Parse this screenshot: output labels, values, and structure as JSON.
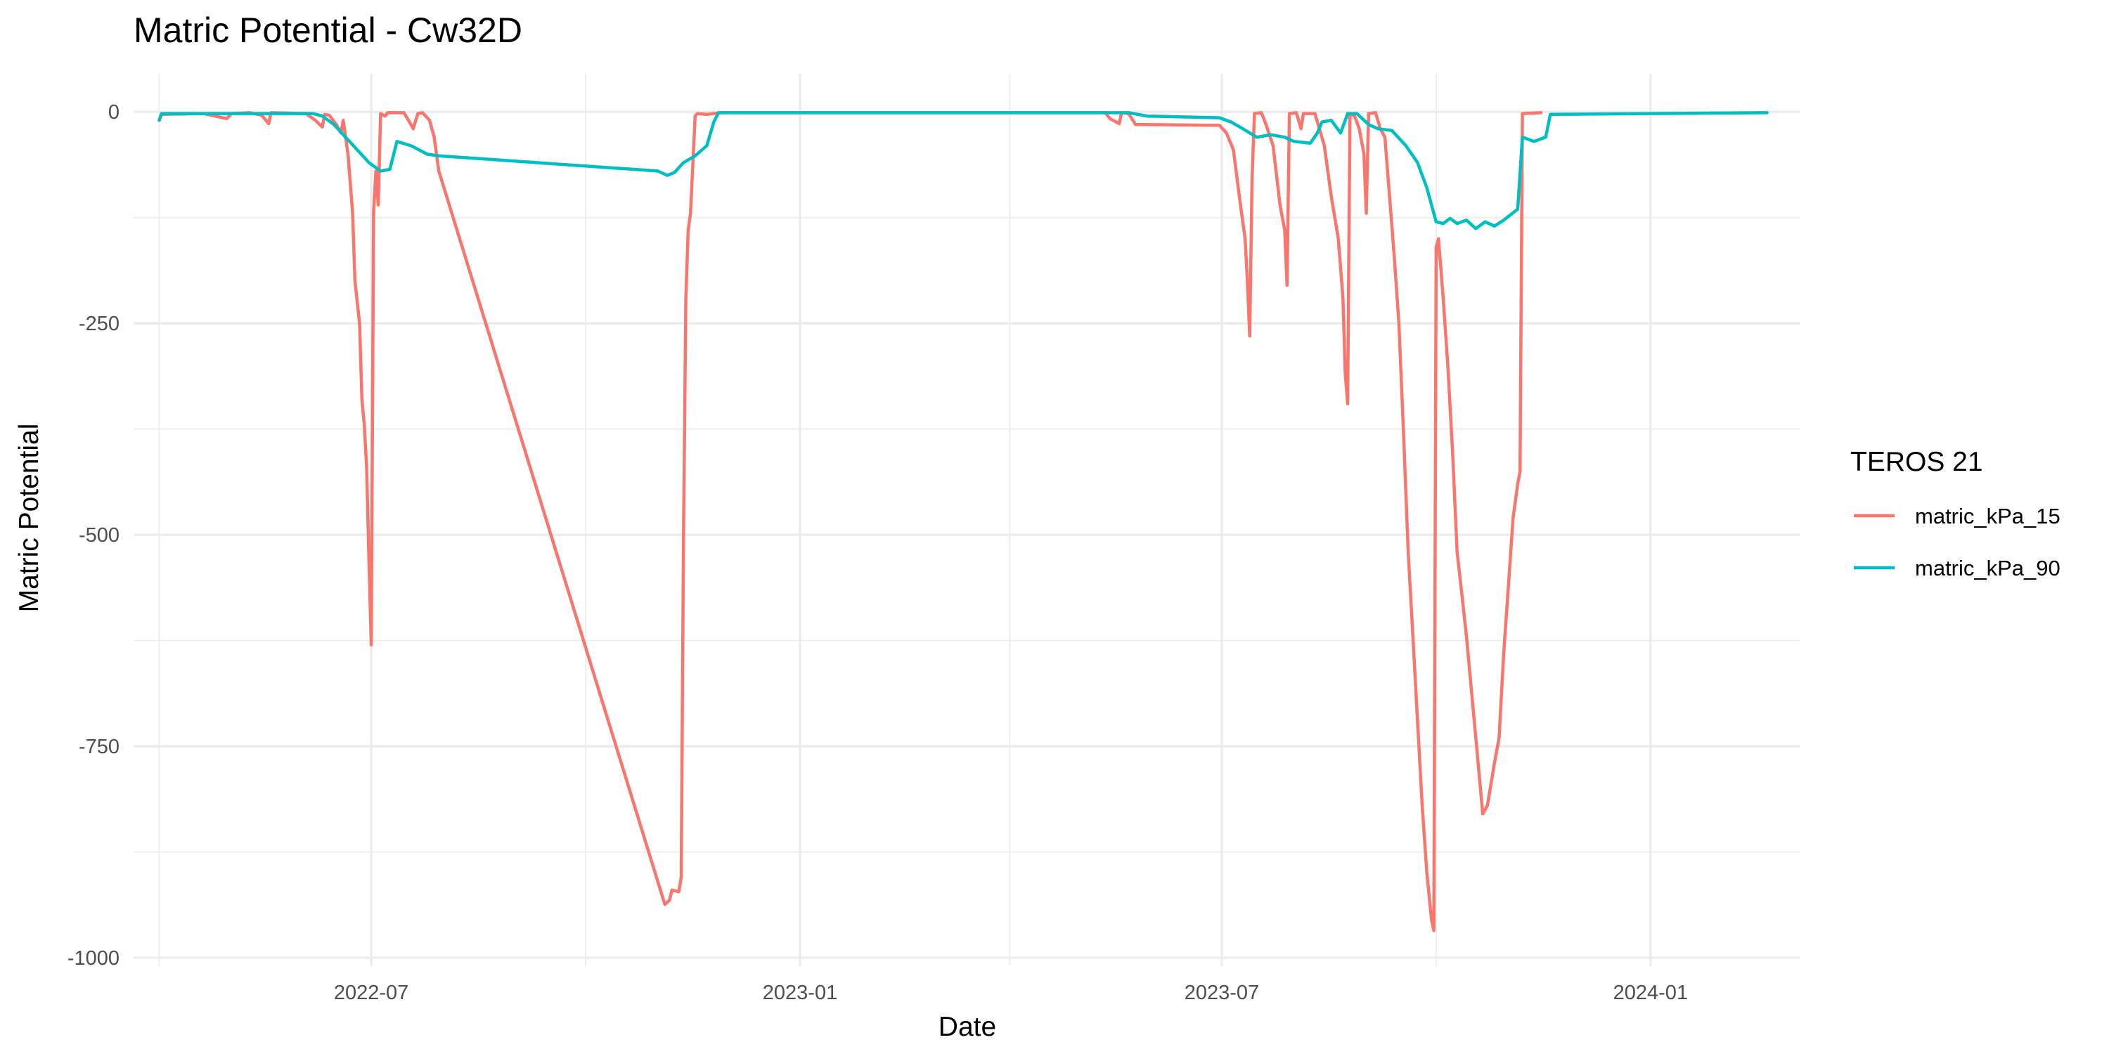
{
  "chart_data": {
    "type": "line",
    "title": "Matric Potential - Cw32D",
    "xlabel": "Date",
    "ylabel": "Matric Potential",
    "x_type": "date",
    "xlim": [
      "2022-03-21",
      "2024-03-05"
    ],
    "ylim": [
      -1010,
      45
    ],
    "x_ticks": [
      {
        "date": "2022-07-01",
        "label": "2022-07"
      },
      {
        "date": "2023-01-01",
        "label": "2023-01"
      },
      {
        "date": "2023-07-01",
        "label": "2023-07"
      },
      {
        "date": "2024-01-01",
        "label": "2024-01"
      }
    ],
    "x_minor_ticks": [
      "2022-04-01",
      "2022-10-01",
      "2023-04-01",
      "2023-10-01"
    ],
    "y_ticks": [
      {
        "value": 0,
        "label": "0"
      },
      {
        "value": -250,
        "label": "-250"
      },
      {
        "value": -500,
        "label": "-500"
      },
      {
        "value": -750,
        "label": "-750"
      },
      {
        "value": -1000,
        "label": "-1000"
      }
    ],
    "y_minor_ticks": [
      -125,
      -375,
      -625,
      -875
    ],
    "grid": true,
    "legend": {
      "title": "TEROS 21",
      "position": "right"
    },
    "series": [
      {
        "name": "matric_kPa_15",
        "color": "#F8766D",
        "points": [
          [
            "2022-04-01",
            -10
          ],
          [
            "2022-04-02",
            -3
          ],
          [
            "2022-04-20",
            -2
          ],
          [
            "2022-04-25",
            -5
          ],
          [
            "2022-04-30",
            -8
          ],
          [
            "2022-05-02",
            -2
          ],
          [
            "2022-05-10",
            -1
          ],
          [
            "2022-05-15",
            -4
          ],
          [
            "2022-05-18",
            -14
          ],
          [
            "2022-05-19",
            -1
          ],
          [
            "2022-06-03",
            -2
          ],
          [
            "2022-06-07",
            -10
          ],
          [
            "2022-06-10",
            -18
          ],
          [
            "2022-06-11",
            -3
          ],
          [
            "2022-06-13",
            -4
          ],
          [
            "2022-06-16",
            -15
          ],
          [
            "2022-06-18",
            -25
          ],
          [
            "2022-06-19",
            -10
          ],
          [
            "2022-06-21",
            -50
          ],
          [
            "2022-06-23",
            -120
          ],
          [
            "2022-06-24",
            -200
          ],
          [
            "2022-06-26",
            -250
          ],
          [
            "2022-06-27",
            -340
          ],
          [
            "2022-06-28",
            -370
          ],
          [
            "2022-06-29",
            -420
          ],
          [
            "2022-06-30",
            -530
          ],
          [
            "2022-07-01",
            -630
          ],
          [
            "2022-07-02",
            -120
          ],
          [
            "2022-07-03",
            -70
          ],
          [
            "2022-07-04",
            -110
          ],
          [
            "2022-07-05",
            -2
          ],
          [
            "2022-07-07",
            -5
          ],
          [
            "2022-07-08",
            -1
          ],
          [
            "2022-07-15",
            -1
          ],
          [
            "2022-07-17",
            -10
          ],
          [
            "2022-07-19",
            -20
          ],
          [
            "2022-07-21",
            -2
          ],
          [
            "2022-07-23",
            -1
          ],
          [
            "2022-07-26",
            -10
          ],
          [
            "2022-07-28",
            -30
          ],
          [
            "2022-07-30",
            -70
          ],
          [
            "2022-11-04",
            -937
          ],
          [
            "2022-11-06",
            -932
          ],
          [
            "2022-11-07",
            -920
          ],
          [
            "2022-11-10",
            -922
          ],
          [
            "2022-11-11",
            -905
          ],
          [
            "2022-11-12",
            -500
          ],
          [
            "2022-11-13",
            -220
          ],
          [
            "2022-11-14",
            -140
          ],
          [
            "2022-11-15",
            -120
          ],
          [
            "2022-11-17",
            -5
          ],
          [
            "2022-11-18",
            -2
          ],
          [
            "2022-11-22",
            -3
          ],
          [
            "2022-11-28",
            -1
          ],
          [
            "2023-05-12",
            -1
          ],
          [
            "2023-05-14",
            -8
          ],
          [
            "2023-05-18",
            -14
          ],
          [
            "2023-05-19",
            -1
          ],
          [
            "2023-05-22",
            -2
          ],
          [
            "2023-05-25",
            -15
          ],
          [
            "2023-05-28",
            -15
          ],
          [
            "2023-06-30",
            -16
          ],
          [
            "2023-07-03",
            -25
          ],
          [
            "2023-07-06",
            -45
          ],
          [
            "2023-07-09",
            -110
          ],
          [
            "2023-07-11",
            -150
          ],
          [
            "2023-07-12",
            -200
          ],
          [
            "2023-07-13",
            -265
          ],
          [
            "2023-07-14",
            -80
          ],
          [
            "2023-07-15",
            -2
          ],
          [
            "2023-07-18",
            -1
          ],
          [
            "2023-07-20",
            -15
          ],
          [
            "2023-07-23",
            -40
          ],
          [
            "2023-07-26",
            -110
          ],
          [
            "2023-07-28",
            -140
          ],
          [
            "2023-07-29",
            -205
          ],
          [
            "2023-07-30",
            -2
          ],
          [
            "2023-08-02",
            -1
          ],
          [
            "2023-08-04",
            -20
          ],
          [
            "2023-08-05",
            -2
          ],
          [
            "2023-08-10",
            -2
          ],
          [
            "2023-08-14",
            -40
          ],
          [
            "2023-08-17",
            -100
          ],
          [
            "2023-08-20",
            -150
          ],
          [
            "2023-08-22",
            -220
          ],
          [
            "2023-08-23",
            -310
          ],
          [
            "2023-08-24",
            -345
          ],
          [
            "2023-08-25",
            -2
          ],
          [
            "2023-08-27",
            -5
          ],
          [
            "2023-08-29",
            -20
          ],
          [
            "2023-08-31",
            -50
          ],
          [
            "2023-09-01",
            -120
          ],
          [
            "2023-09-02",
            -2
          ],
          [
            "2023-09-05",
            -1
          ],
          [
            "2023-09-07",
            -20
          ],
          [
            "2023-09-09",
            -30
          ],
          [
            "2023-09-11",
            -100
          ],
          [
            "2023-09-13",
            -170
          ],
          [
            "2023-09-15",
            -250
          ],
          [
            "2023-09-17",
            -380
          ],
          [
            "2023-09-19",
            -520
          ],
          [
            "2023-09-21",
            -620
          ],
          [
            "2023-09-23",
            -720
          ],
          [
            "2023-09-25",
            -820
          ],
          [
            "2023-09-27",
            -900
          ],
          [
            "2023-09-29",
            -955
          ],
          [
            "2023-09-30",
            -968
          ],
          [
            "2023-10-01",
            -160
          ],
          [
            "2023-10-02",
            -150
          ],
          [
            "2023-10-04",
            -220
          ],
          [
            "2023-10-06",
            -300
          ],
          [
            "2023-10-08",
            -400
          ],
          [
            "2023-10-10",
            -520
          ],
          [
            "2023-10-12",
            -570
          ],
          [
            "2023-10-14",
            -620
          ],
          [
            "2023-10-16",
            -680
          ],
          [
            "2023-10-18",
            -740
          ],
          [
            "2023-10-20",
            -800
          ],
          [
            "2023-10-21",
            -830
          ],
          [
            "2023-10-23",
            -820
          ],
          [
            "2023-10-26",
            -770
          ],
          [
            "2023-10-28",
            -740
          ],
          [
            "2023-10-30",
            -640
          ],
          [
            "2023-11-01",
            -560
          ],
          [
            "2023-11-03",
            -480
          ],
          [
            "2023-11-05",
            -440
          ],
          [
            "2023-11-06",
            -425
          ],
          [
            "2023-11-07",
            -2
          ],
          [
            "2023-11-15",
            -1
          ]
        ]
      },
      {
        "name": "matric_kPa_90",
        "color": "#00BFC4",
        "points": [
          [
            "2022-04-01",
            -10
          ],
          [
            "2022-04-02",
            -2
          ],
          [
            "2022-06-06",
            -2
          ],
          [
            "2022-06-10",
            -5
          ],
          [
            "2022-06-15",
            -15
          ],
          [
            "2022-06-20",
            -30
          ],
          [
            "2022-06-25",
            -45
          ],
          [
            "2022-06-30",
            -60
          ],
          [
            "2022-07-05",
            -70
          ],
          [
            "2022-07-09",
            -68
          ],
          [
            "2022-07-12",
            -35
          ],
          [
            "2022-07-18",
            -40
          ],
          [
            "2022-07-25",
            -50
          ],
          [
            "2022-07-30",
            -52
          ],
          [
            "2022-11-01",
            -70
          ],
          [
            "2022-11-05",
            -75
          ],
          [
            "2022-11-08",
            -72
          ],
          [
            "2022-11-12",
            -60
          ],
          [
            "2022-11-17",
            -52
          ],
          [
            "2022-11-22",
            -40
          ],
          [
            "2022-11-25",
            -12
          ],
          [
            "2022-11-27",
            -1
          ],
          [
            "2023-05-22",
            -1
          ],
          [
            "2023-05-30",
            -5
          ],
          [
            "2023-06-30",
            -7
          ],
          [
            "2023-07-05",
            -12
          ],
          [
            "2023-07-10",
            -20
          ],
          [
            "2023-07-16",
            -30
          ],
          [
            "2023-07-22",
            -27
          ],
          [
            "2023-07-28",
            -30
          ],
          [
            "2023-08-01",
            -35
          ],
          [
            "2023-08-08",
            -37
          ],
          [
            "2023-08-11",
            -25
          ],
          [
            "2023-08-13",
            -12
          ],
          [
            "2023-08-17",
            -10
          ],
          [
            "2023-08-21",
            -25
          ],
          [
            "2023-08-24",
            -2
          ],
          [
            "2023-08-28",
            -2
          ],
          [
            "2023-09-02",
            -15
          ],
          [
            "2023-09-06",
            -20
          ],
          [
            "2023-09-12",
            -22
          ],
          [
            "2023-09-18",
            -40
          ],
          [
            "2023-09-23",
            -60
          ],
          [
            "2023-09-27",
            -90
          ],
          [
            "2023-10-01",
            -130
          ],
          [
            "2023-10-04",
            -132
          ],
          [
            "2023-10-07",
            -126
          ],
          [
            "2023-10-10",
            -132
          ],
          [
            "2023-10-14",
            -128
          ],
          [
            "2023-10-18",
            -138
          ],
          [
            "2023-10-22",
            -130
          ],
          [
            "2023-10-26",
            -135
          ],
          [
            "2023-10-30",
            -128
          ],
          [
            "2023-11-05",
            -115
          ],
          [
            "2023-11-07",
            -30
          ],
          [
            "2023-11-12",
            -35
          ],
          [
            "2023-11-17",
            -30
          ],
          [
            "2023-11-19",
            -3
          ],
          [
            "2024-02-20",
            -1
          ]
        ]
      }
    ]
  }
}
